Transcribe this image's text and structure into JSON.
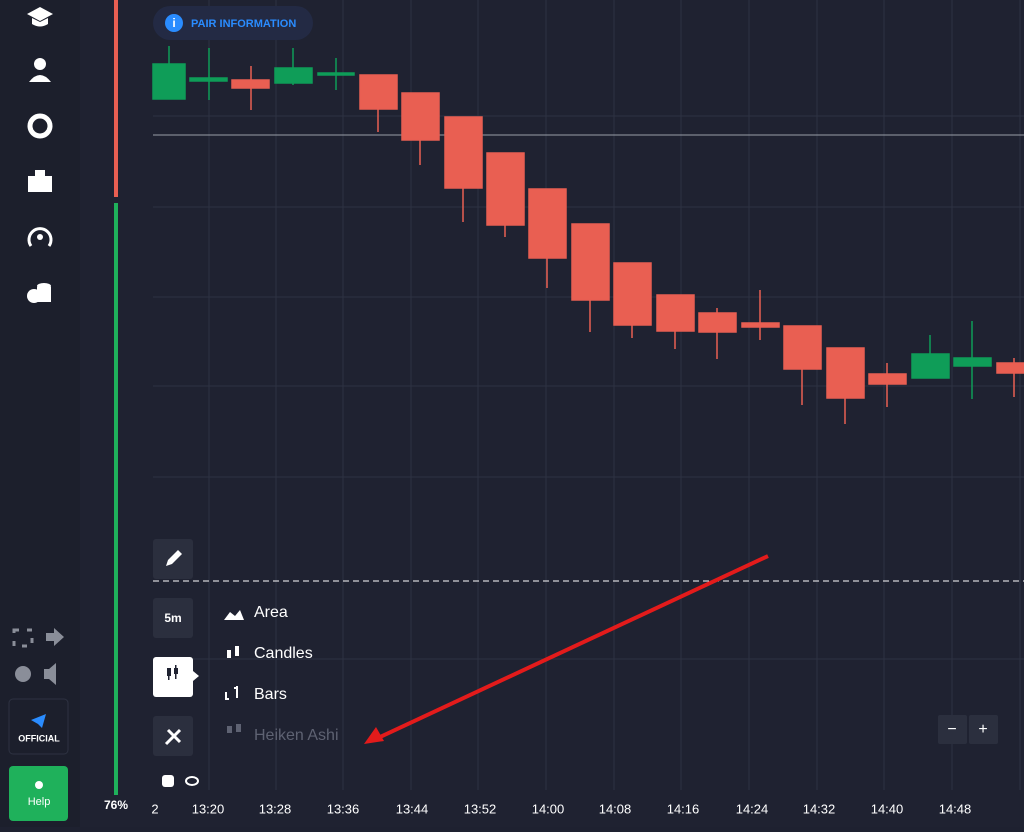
{
  "header": {
    "pair_button": "PAIR INFORMATION"
  },
  "sidebar": {
    "official_button": "OFFICIAL",
    "help_button": "Help",
    "balance_indicator": "76%"
  },
  "toolbar": {
    "timeframe": "5m"
  },
  "chart_type_menu": {
    "items": [
      "Area",
      "Candles",
      "Bars",
      "Heiken Ashi"
    ]
  },
  "time_axis": {
    "labels": [
      "2",
      "13:20",
      "13:28",
      "13:36",
      "13:44",
      "13:52",
      "14:00",
      "14:08",
      "14:16",
      "14:24",
      "14:32",
      "14:40",
      "14:48"
    ]
  },
  "zoom": {
    "out": "−",
    "in": "+"
  }
}
